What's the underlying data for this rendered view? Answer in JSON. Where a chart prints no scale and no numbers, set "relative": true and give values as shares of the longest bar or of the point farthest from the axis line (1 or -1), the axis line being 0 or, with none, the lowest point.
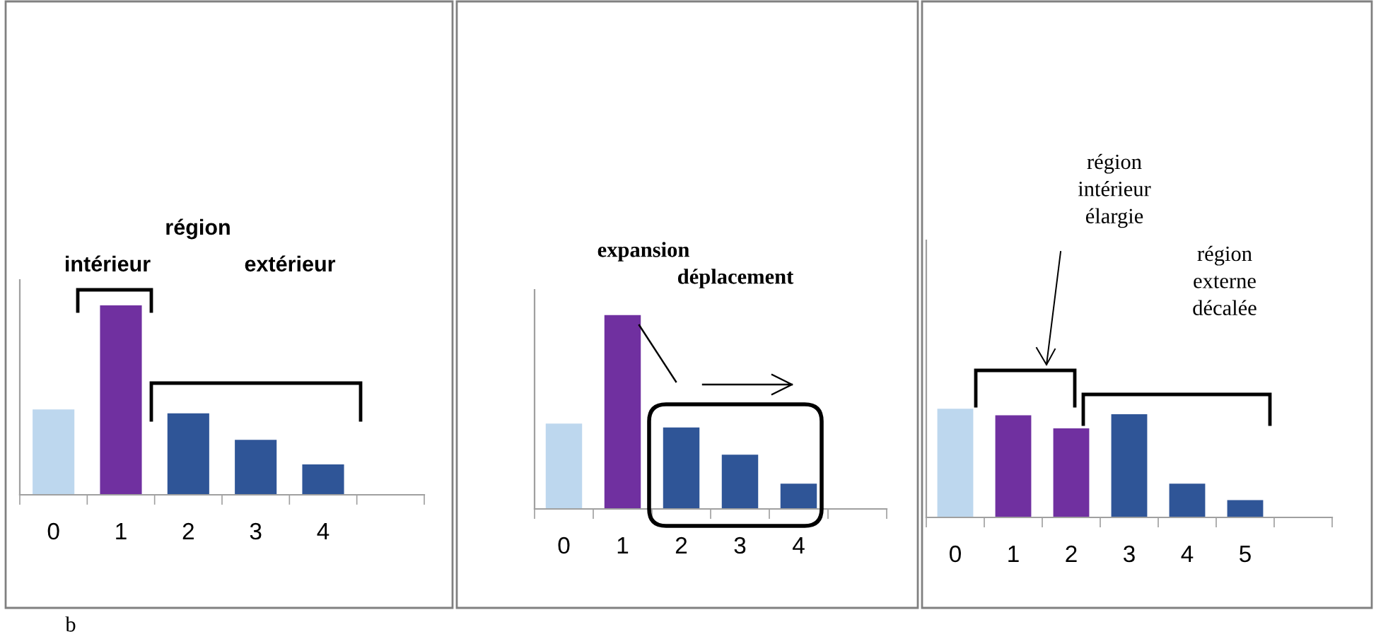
{
  "chart_data": [
    {
      "type": "bar",
      "relative": true,
      "tick_labels": "x",
      "categories": [
        "0",
        "1",
        "2",
        "3",
        "4",
        null
      ],
      "values": [
        0.45,
        1,
        0.43,
        0.29,
        0.16,
        null
      ],
      "colors": [
        "#bdd7ee",
        "#7030a0",
        "#2f5597",
        "#2f5597",
        "#2f5597",
        null
      ],
      "annotations": [
        "région",
        "intérieur",
        "extérieur",
        "b"
      ]
    },
    {
      "type": "bar",
      "relative": true,
      "tick_labels": "x",
      "categories": [
        "0",
        "1",
        "2",
        "3",
        "4",
        null
      ],
      "values": [
        0.44,
        1,
        0.42,
        0.28,
        0.13,
        null
      ],
      "colors": [
        "#bdd7ee",
        "#7030a0",
        "#2f5597",
        "#2f5597",
        "#2f5597",
        null
      ],
      "annotations": [
        "expansion",
        "déplacement"
      ]
    },
    {
      "type": "bar",
      "relative": true,
      "tick_labels": "x",
      "categories": [
        "0",
        "1",
        "2",
        "3",
        "4",
        "5",
        null
      ],
      "values": [
        1,
        0.94,
        0.82,
        0.95,
        0.31,
        0.16,
        null
      ],
      "colors": [
        "#bdd7ee",
        "#7030a0",
        "#7030a0",
        "#2f5597",
        "#2f5597",
        "#2f5597",
        null
      ],
      "annotations": [
        "région\nintérieur\nélargie",
        "région\nexterne\ndécalée"
      ]
    }
  ]
}
